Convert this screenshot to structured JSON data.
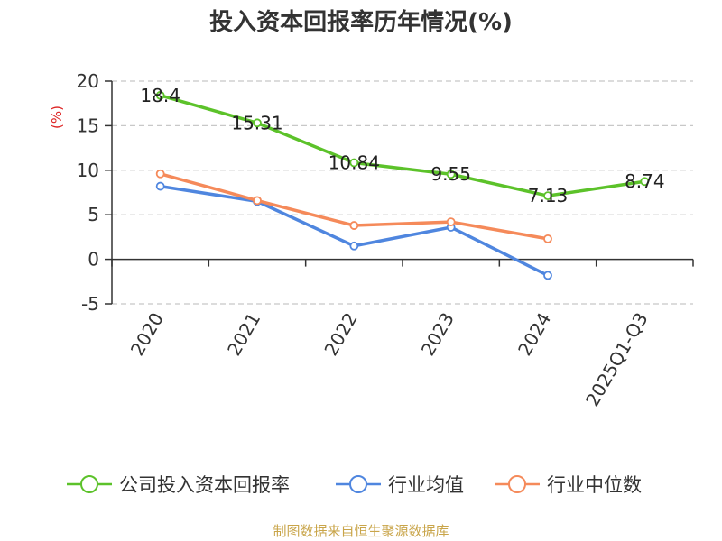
{
  "chart_data": {
    "type": "line",
    "title": "投入资本回报率历年情况(%)",
    "ylabel": "(%)",
    "categories": [
      "2020",
      "2021",
      "2022",
      "2023",
      "2024",
      "2025Q1-Q3"
    ],
    "ylim": [
      -5,
      20
    ],
    "yticks": [
      20,
      15,
      10,
      5,
      0,
      -5
    ],
    "grid": true,
    "legend_position": "bottom",
    "series": [
      {
        "name": "公司投入资本回报率",
        "color": "#5cc22a",
        "values": [
          18.4,
          15.31,
          10.84,
          9.55,
          7.13,
          8.74
        ],
        "labels": [
          "18.4",
          "15.31",
          "10.84",
          "9.55",
          "7.13",
          "8.74"
        ]
      },
      {
        "name": "行业均值",
        "color": "#4f86df",
        "values": [
          8.2,
          6.5,
          1.5,
          3.6,
          -1.8,
          null
        ]
      },
      {
        "name": "行业中位数",
        "color": "#f58a5a",
        "values": [
          9.6,
          6.6,
          3.8,
          4.2,
          2.3,
          null
        ]
      }
    ]
  },
  "source": "制图数据来自恒生聚源数据库"
}
